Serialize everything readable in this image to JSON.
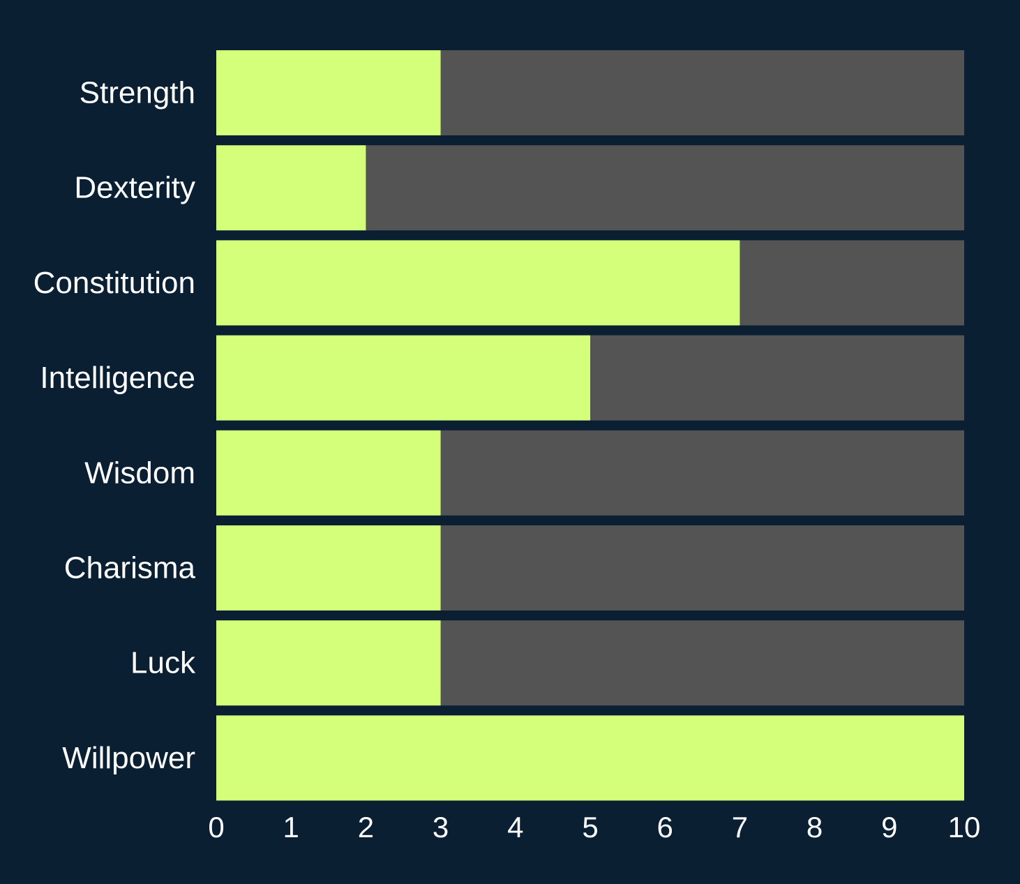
{
  "chart_data": {
    "type": "bar",
    "orientation": "horizontal",
    "stacked": true,
    "categories": [
      "Strength",
      "Dexterity",
      "Constitution",
      "Intelligence",
      "Wisdom",
      "Charisma",
      "Luck",
      "Willpower"
    ],
    "values": [
      3,
      2,
      7,
      5,
      3,
      3,
      3,
      10
    ],
    "max_value": 10,
    "xlim": [
      0,
      10
    ],
    "x_ticks": [
      "0",
      "1",
      "2",
      "3",
      "4",
      "5",
      "6",
      "7",
      "8",
      "9",
      "10"
    ],
    "title": "",
    "xlabel": "",
    "ylabel": "",
    "grid": false,
    "legend": "none"
  },
  "colors": {
    "background": "#0b1f33",
    "filled": "#d4ff7b",
    "remaining": "#545454",
    "text": "#ffffff"
  }
}
